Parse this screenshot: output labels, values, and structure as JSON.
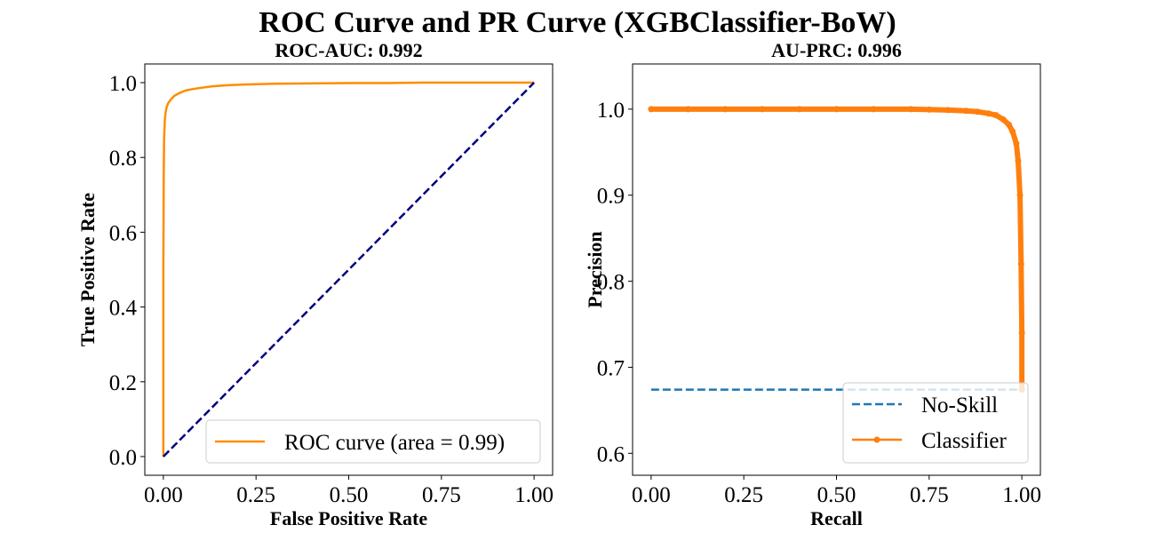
{
  "figure": {
    "title": "ROC Curve and PR Curve (XGBClassifier-BoW)"
  },
  "colors": {
    "roc_curve": "#ff8c00",
    "diagonal": "#000080",
    "no_skill": "#1f77b4",
    "classifier": "#ff7f0e"
  },
  "chart_data": [
    {
      "type": "line",
      "title": "ROC-AUC: 0.992",
      "xlabel": "False Positive Rate",
      "ylabel": "True Positive Rate",
      "xlim": [
        -0.05,
        1.05
      ],
      "ylim": [
        -0.05,
        1.05
      ],
      "xticks": [
        0.0,
        0.25,
        0.5,
        0.75,
        1.0
      ],
      "xtick_labels": [
        "0.00",
        "0.25",
        "0.50",
        "0.75",
        "1.00"
      ],
      "yticks": [
        0.0,
        0.2,
        0.4,
        0.6,
        0.8,
        1.0
      ],
      "ytick_labels": [
        "0.0",
        "0.2",
        "0.4",
        "0.6",
        "0.8",
        "1.0"
      ],
      "legend_position": "lower-right",
      "series": [
        {
          "name": "ROC curve (area = 0.99)",
          "style": "solid",
          "x": [
            0.0,
            0.0,
            0.001,
            0.002,
            0.004,
            0.006,
            0.009,
            0.013,
            0.02,
            0.03,
            0.045,
            0.06,
            0.08,
            0.1,
            0.13,
            0.17,
            0.22,
            0.3,
            0.4,
            0.5,
            0.6,
            0.7,
            0.8,
            0.9,
            1.0
          ],
          "y": [
            0.0,
            0.5,
            0.75,
            0.85,
            0.9,
            0.92,
            0.935,
            0.945,
            0.955,
            0.965,
            0.973,
            0.979,
            0.983,
            0.986,
            0.99,
            0.993,
            0.995,
            0.997,
            0.998,
            0.999,
            0.999,
            1.0,
            1.0,
            1.0,
            1.0
          ]
        },
        {
          "name": "",
          "style": "dashed",
          "x": [
            0.0,
            1.0
          ],
          "y": [
            0.0,
            1.0
          ]
        }
      ]
    },
    {
      "type": "line",
      "title": "AU-PRC: 0.996",
      "xlabel": "Recall",
      "ylabel": "Precision",
      "xlim": [
        -0.05,
        1.05
      ],
      "ylim": [
        0.5745,
        1.0525
      ],
      "xticks": [
        0.0,
        0.25,
        0.5,
        0.75,
        1.0
      ],
      "xtick_labels": [
        "0.00",
        "0.25",
        "0.50",
        "0.75",
        "1.00"
      ],
      "yticks": [
        0.6,
        0.7,
        0.8,
        0.9,
        1.0
      ],
      "ytick_labels": [
        "0.6",
        "0.7",
        "0.8",
        "0.9",
        "1.0"
      ],
      "legend_position": "lower-right",
      "series": [
        {
          "name": "No-Skill",
          "style": "dashed",
          "x": [
            0.0,
            1.0
          ],
          "y": [
            0.674,
            0.674
          ]
        },
        {
          "name": "Classifier",
          "style": "solid-marker",
          "x": [
            0.0,
            0.1,
            0.2,
            0.3,
            0.4,
            0.5,
            0.6,
            0.7,
            0.75,
            0.8,
            0.85,
            0.88,
            0.91,
            0.93,
            0.95,
            0.965,
            0.975,
            0.985,
            0.99,
            0.995,
            0.998,
            1.0,
            1.0
          ],
          "y": [
            1.0,
            1.0,
            1.0,
            1.0,
            1.0,
            1.0,
            1.0,
            1.0,
            0.9995,
            0.999,
            0.998,
            0.997,
            0.995,
            0.993,
            0.988,
            0.982,
            0.974,
            0.96,
            0.94,
            0.9,
            0.82,
            0.74,
            0.674
          ]
        }
      ]
    }
  ]
}
